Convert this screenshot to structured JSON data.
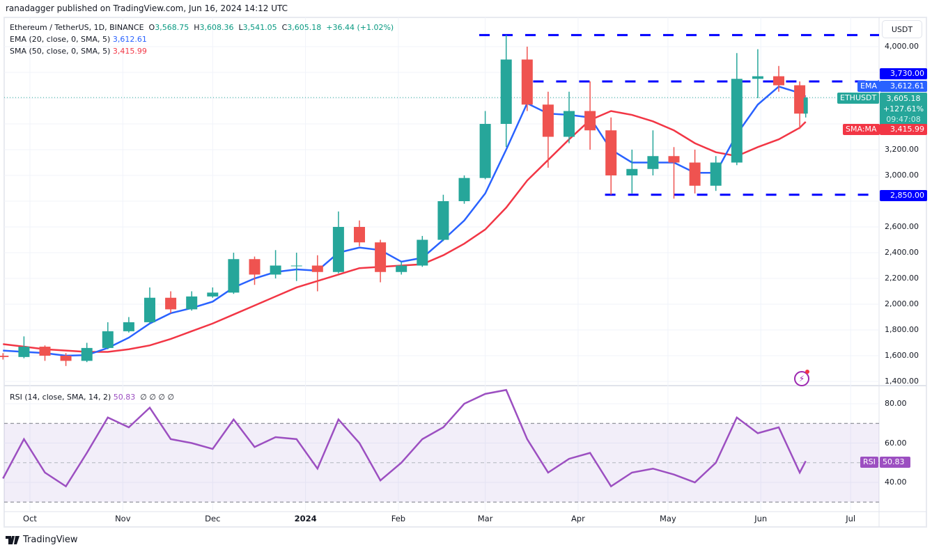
{
  "header": {
    "published": "ranadagger published on TradingView.com, Jun 16, 2024 14:12 UTC"
  },
  "legend": {
    "symbol": "Ethereum / TetherUS, 1D, BINANCE",
    "o_label": "O",
    "open": "3,568.75",
    "h_label": "H",
    "high": "3,608.36",
    "l_label": "L",
    "low": "3,541.05",
    "c_label": "C",
    "close": "3,605.18",
    "change": "+36.44 (+1.02%)",
    "ema_label": "EMA (20, close, 0, SMA, 5)",
    "ema_value": "3,612.61",
    "sma_label": "SMA (50, close, 0, SMA, 5)",
    "sma_value": "3,415.99",
    "rsi_label": "RSI (14, close, SMA, 14, 2)",
    "rsi_value": "50.83",
    "rsi_extra": "∅ ∅ ∅ ∅"
  },
  "price_axis": {
    "currency": "USDT",
    "ticks": [
      "4,000.00",
      "3,200.00",
      "3,000.00",
      "2,600.00",
      "2,400.00",
      "2,200.00",
      "2,000.00",
      "1,800.00",
      "1,600.00",
      "1,400.00"
    ]
  },
  "rsi_axis": {
    "ticks": [
      "80.00",
      "60.00",
      "40.00"
    ]
  },
  "tags": {
    "level_high": "3,730.00",
    "ema_name": "EMA",
    "ema_value": "3,612.61",
    "symbol": "ETHUSDT",
    "price": "3,605.18",
    "pct": "+127.61%",
    "countdown": "09:47:08",
    "sma_name": "SMA:MA",
    "sma_value": "3,415.99",
    "level_low": "2,850.00",
    "rsi_name": "RSI",
    "rsi_value": "50.83"
  },
  "time_axis": [
    {
      "label": "Oct",
      "date": "2023-10-01"
    },
    {
      "label": "Nov",
      "date": "2023-11-01"
    },
    {
      "label": "Dec",
      "date": "2023-12-01"
    },
    {
      "label": "2024",
      "date": "2024-01-01"
    },
    {
      "label": "Feb",
      "date": "2024-02-01"
    },
    {
      "label": "Mar",
      "date": "2024-03-01"
    },
    {
      "label": "Apr",
      "date": "2024-04-01"
    },
    {
      "label": "May",
      "date": "2024-05-01"
    },
    {
      "label": "Jun",
      "date": "2024-06-01"
    },
    {
      "label": "Jul",
      "date": "2024-07-01"
    }
  ],
  "brand": "TradingView",
  "colors": {
    "up": "#26a69a",
    "down": "#ef5350",
    "ema": "#2962ff",
    "sma": "#f23645",
    "rsi": "#9c4fc1",
    "levels": "#0000ff"
  },
  "chart_data": {
    "type": "candlestick",
    "price_range": [
      1400,
      4100
    ],
    "rsi_range": [
      25,
      90
    ],
    "horizontal_levels": [
      {
        "price": 4090,
        "from": "2024-02-28"
      },
      {
        "price": 3730,
        "from": "2024-03-17"
      },
      {
        "price": 2850,
        "from": "2024-04-10"
      }
    ],
    "candles": [
      [
        "2023-09-22",
        1600,
        1620,
        1570,
        1590
      ],
      [
        "2023-09-29",
        1590,
        1750,
        1580,
        1670
      ],
      [
        "2023-10-06",
        1670,
        1680,
        1560,
        1600
      ],
      [
        "2023-10-13",
        1600,
        1620,
        1520,
        1560
      ],
      [
        "2023-10-20",
        1560,
        1700,
        1550,
        1660
      ],
      [
        "2023-10-27",
        1660,
        1860,
        1650,
        1790
      ],
      [
        "2023-11-03",
        1790,
        1900,
        1780,
        1860
      ],
      [
        "2023-11-10",
        1860,
        2130,
        1850,
        2050
      ],
      [
        "2023-11-17",
        2050,
        2100,
        1930,
        1960
      ],
      [
        "2023-11-24",
        1960,
        2100,
        1950,
        2060
      ],
      [
        "2023-12-01",
        2060,
        2130,
        2050,
        2090
      ],
      [
        "2023-12-08",
        2090,
        2400,
        2080,
        2350
      ],
      [
        "2023-12-15",
        2350,
        2370,
        2150,
        2230
      ],
      [
        "2023-12-22",
        2230,
        2420,
        2200,
        2300
      ],
      [
        "2023-12-29",
        2300,
        2400,
        2180,
        2300
      ],
      [
        "2024-01-05",
        2300,
        2380,
        2100,
        2250
      ],
      [
        "2024-01-12",
        2250,
        2720,
        2240,
        2600
      ],
      [
        "2024-01-19",
        2600,
        2650,
        2450,
        2480
      ],
      [
        "2024-01-26",
        2480,
        2500,
        2170,
        2250
      ],
      [
        "2024-02-02",
        2250,
        2330,
        2230,
        2300
      ],
      [
        "2024-02-09",
        2300,
        2530,
        2290,
        2500
      ],
      [
        "2024-02-16",
        2500,
        2850,
        2490,
        2800
      ],
      [
        "2024-02-23",
        2800,
        3000,
        2780,
        2980
      ],
      [
        "2024-03-01",
        2980,
        3500,
        2970,
        3400
      ],
      [
        "2024-03-08",
        3400,
        4090,
        3220,
        3900
      ],
      [
        "2024-03-15",
        3900,
        4000,
        3500,
        3550
      ],
      [
        "2024-03-22",
        3550,
        3650,
        3060,
        3300
      ],
      [
        "2024-03-29",
        3300,
        3650,
        3250,
        3500
      ],
      [
        "2024-04-05",
        3500,
        3730,
        3200,
        3350
      ],
      [
        "2024-04-12",
        3350,
        3450,
        2850,
        3000
      ],
      [
        "2024-04-19",
        3000,
        3200,
        2860,
        3050
      ],
      [
        "2024-04-26",
        3050,
        3350,
        3000,
        3150
      ],
      [
        "2024-05-03",
        3150,
        3220,
        2820,
        3100
      ],
      [
        "2024-05-10",
        3100,
        3200,
        2860,
        2920
      ],
      [
        "2024-05-17",
        2920,
        3150,
        2880,
        3100
      ],
      [
        "2024-05-24",
        3100,
        3950,
        3080,
        3750
      ],
      [
        "2024-05-31",
        3750,
        3980,
        3600,
        3770
      ],
      [
        "2024-06-07",
        3770,
        3850,
        3650,
        3700
      ],
      [
        "2024-06-14",
        3700,
        3730,
        3360,
        3480
      ],
      [
        "2024-06-16",
        3480,
        3608,
        3450,
        3605
      ]
    ],
    "ema20": [
      1640,
      1630,
      1620,
      1600,
      1605,
      1660,
      1740,
      1850,
      1930,
      1970,
      2020,
      2130,
      2200,
      2250,
      2270,
      2260,
      2400,
      2440,
      2420,
      2330,
      2360,
      2500,
      2650,
      2860,
      3200,
      3560,
      3480,
      3470,
      3450,
      3200,
      3100,
      3100,
      3100,
      3020,
      3020,
      3320,
      3550,
      3690,
      3640,
      3612.61
    ],
    "sma50": [
      1690,
      1670,
      1650,
      1640,
      1630,
      1630,
      1650,
      1680,
      1730,
      1790,
      1850,
      1920,
      1990,
      2060,
      2130,
      2180,
      2230,
      2280,
      2290,
      2300,
      2310,
      2380,
      2470,
      2580,
      2750,
      2960,
      3120,
      3280,
      3430,
      3500,
      3470,
      3420,
      3350,
      3250,
      3180,
      3150,
      3220,
      3280,
      3370,
      3415.99
    ],
    "rsi": [
      42,
      62,
      45,
      38,
      55,
      73,
      68,
      78,
      62,
      60,
      57,
      72,
      58,
      63,
      62,
      47,
      72,
      60,
      41,
      50,
      62,
      68,
      80,
      85,
      87,
      62,
      45,
      52,
      55,
      38,
      45,
      47,
      44,
      40,
      50,
      73,
      65,
      68,
      45,
      50.83
    ],
    "rsi_levels": [
      70,
      50,
      30
    ]
  }
}
